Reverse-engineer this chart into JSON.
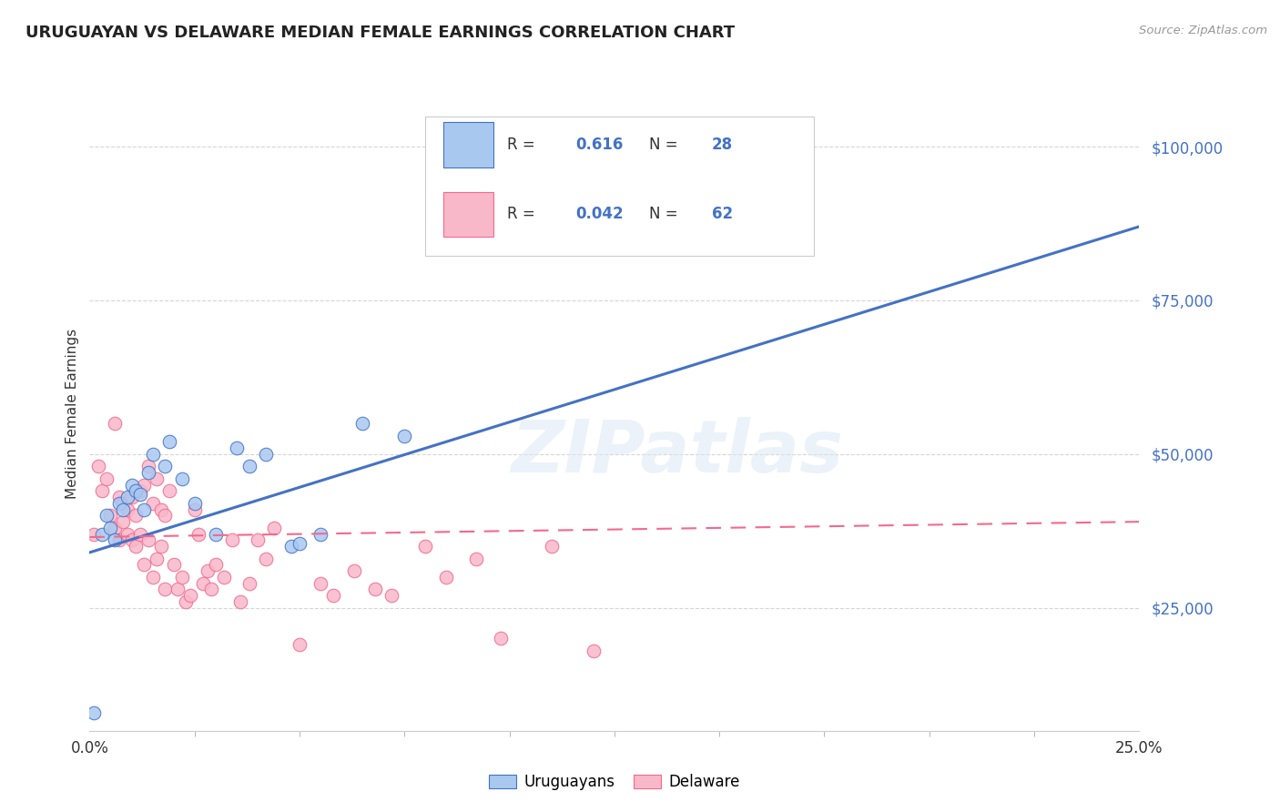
{
  "title": "URUGUAYAN VS DELAWARE MEDIAN FEMALE EARNINGS CORRELATION CHART",
  "source": "Source: ZipAtlas.com",
  "ylabel": "Median Female Earnings",
  "ytick_labels": [
    "$25,000",
    "$50,000",
    "$75,000",
    "$100,000"
  ],
  "ytick_values": [
    25000,
    50000,
    75000,
    100000
  ],
  "xmin": 0.0,
  "xmax": 0.25,
  "ymin": 5000,
  "ymax": 108000,
  "legend_blue_label": "Uruguayans",
  "legend_pink_label": "Delaware",
  "blue_color": "#4472C4",
  "pink_color": "#F4698C",
  "blue_dot_color": "#A8C8F0",
  "pink_dot_color": "#F9B8CA",
  "watermark": "ZIPatlas",
  "blue_trendline_x": [
    0.0,
    0.25
  ],
  "blue_trendline_y": [
    34000,
    87000
  ],
  "pink_trendline_x": [
    0.0,
    0.25
  ],
  "pink_trendline_y": [
    36500,
    39000
  ],
  "blue_scatter_x": [
    0.001,
    0.003,
    0.004,
    0.005,
    0.006,
    0.007,
    0.008,
    0.009,
    0.01,
    0.011,
    0.012,
    0.013,
    0.014,
    0.015,
    0.018,
    0.019,
    0.022,
    0.025,
    0.03,
    0.035,
    0.038,
    0.042,
    0.048,
    0.055,
    0.065,
    0.075,
    0.13,
    0.05
  ],
  "blue_scatter_y": [
    8000,
    37000,
    40000,
    38000,
    36000,
    42000,
    41000,
    43000,
    45000,
    44000,
    43500,
    41000,
    47000,
    50000,
    48000,
    52000,
    46000,
    42000,
    37000,
    51000,
    48000,
    50000,
    35000,
    37000,
    55000,
    53000,
    98000,
    35500
  ],
  "pink_scatter_x": [
    0.001,
    0.002,
    0.003,
    0.004,
    0.005,
    0.006,
    0.006,
    0.007,
    0.007,
    0.008,
    0.008,
    0.009,
    0.009,
    0.01,
    0.01,
    0.011,
    0.011,
    0.012,
    0.012,
    0.013,
    0.013,
    0.014,
    0.014,
    0.015,
    0.015,
    0.016,
    0.016,
    0.017,
    0.017,
    0.018,
    0.018,
    0.019,
    0.02,
    0.021,
    0.022,
    0.023,
    0.024,
    0.025,
    0.026,
    0.027,
    0.028,
    0.029,
    0.03,
    0.032,
    0.034,
    0.036,
    0.038,
    0.04,
    0.042,
    0.044,
    0.05,
    0.055,
    0.058,
    0.063,
    0.068,
    0.072,
    0.08,
    0.085,
    0.092,
    0.098,
    0.11,
    0.12
  ],
  "pink_scatter_y": [
    37000,
    48000,
    44000,
    46000,
    40000,
    55000,
    38000,
    43000,
    36000,
    42000,
    39000,
    41000,
    37000,
    43000,
    36000,
    40000,
    35000,
    44000,
    37000,
    45000,
    32000,
    48000,
    36000,
    42000,
    30000,
    46000,
    33000,
    41000,
    35000,
    40000,
    28000,
    44000,
    32000,
    28000,
    30000,
    26000,
    27000,
    41000,
    37000,
    29000,
    31000,
    28000,
    32000,
    30000,
    36000,
    26000,
    29000,
    36000,
    33000,
    38000,
    19000,
    29000,
    27000,
    31000,
    28000,
    27000,
    35000,
    30000,
    33000,
    20000,
    35000,
    18000
  ],
  "grid_color": "#cccccc",
  "title_fontsize": 13,
  "label_fontsize": 11,
  "tick_fontsize": 12
}
